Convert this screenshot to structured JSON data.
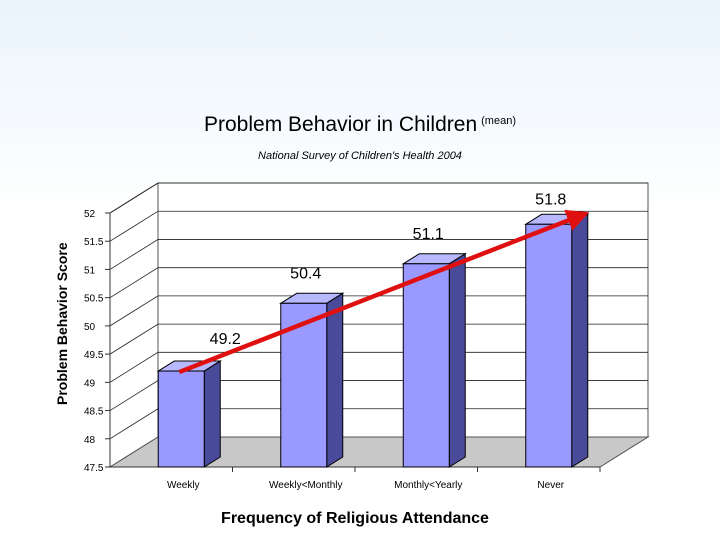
{
  "chart_data": {
    "type": "bar",
    "title": "Problem Behavior in Children",
    "title_suffix": "(mean)",
    "subtitle": "National Survey of Children's Health 2004",
    "xlabel": "Frequency of Religious Attendance",
    "ylabel": "Problem Behavior Score",
    "categories": [
      "Weekly",
      "Weekly<Monthly",
      "Monthly<Yearly",
      "Never"
    ],
    "values": [
      49.2,
      50.4,
      51.1,
      51.8
    ],
    "data_labels": [
      "49.2",
      "50.4",
      "51.1",
      "51.8"
    ],
    "ylim": [
      47.5,
      52
    ],
    "yticks": [
      "47.5",
      "48",
      "48.5",
      "49",
      "49.5",
      "50",
      "50.5",
      "51",
      "51.5",
      "52"
    ],
    "grid": true,
    "bar_color": "#9999ff",
    "trend_arrow_color": "#e01010",
    "trend": "increasing"
  }
}
